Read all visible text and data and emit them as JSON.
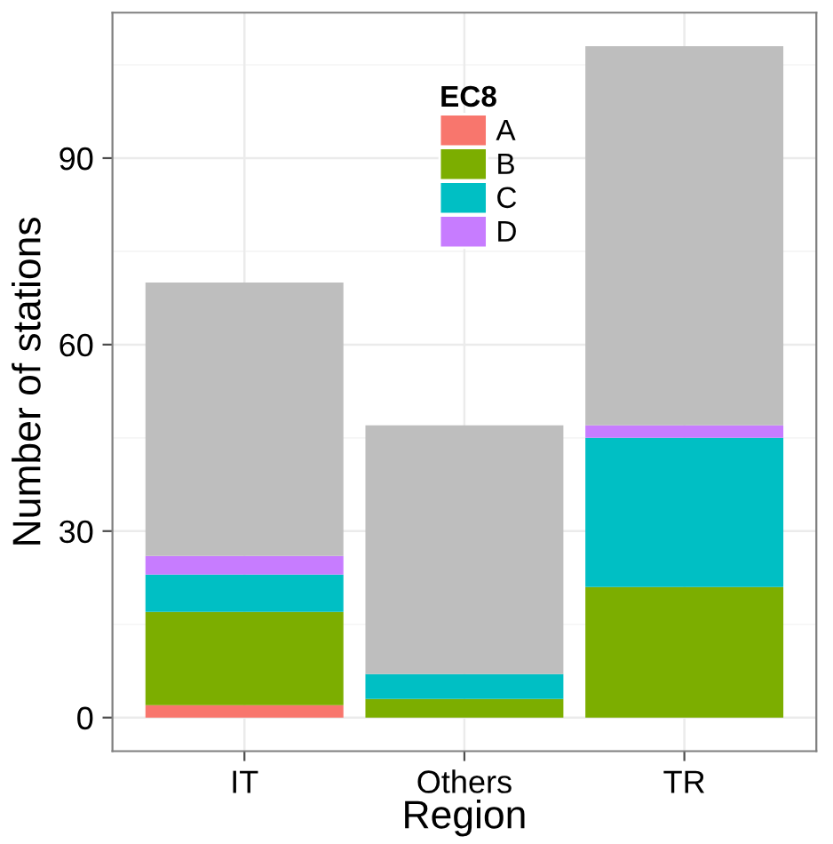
{
  "chart_data": {
    "type": "bar",
    "stacked": true,
    "xlabel": "Region",
    "ylabel": "Number of stations",
    "legend_title": "EC8",
    "legend": "top",
    "grid": true,
    "categories": [
      "IT",
      "Others",
      "TR"
    ],
    "series": [
      {
        "name": "A",
        "color": "#f8766d",
        "values": [
          2,
          0,
          0
        ]
      },
      {
        "name": "B",
        "color": "#7cae00",
        "values": [
          15,
          3,
          21
        ]
      },
      {
        "name": "C",
        "color": "#00bfc4",
        "values": [
          6,
          4,
          24
        ]
      },
      {
        "name": "D",
        "color": "#c77cff",
        "values": [
          3,
          0,
          2
        ]
      },
      {
        "color": "#bebebe",
        "values": [
          44,
          40,
          61
        ]
      }
    ],
    "ylim": [
      -5.4,
      113.4
    ],
    "yticks": [
      0,
      30,
      60,
      90
    ]
  }
}
